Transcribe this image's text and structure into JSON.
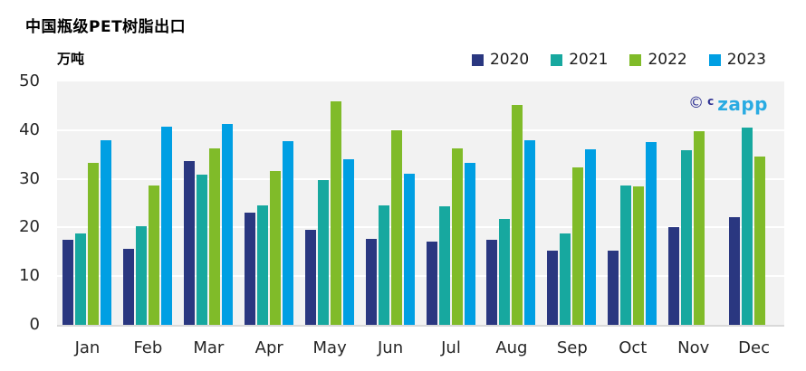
{
  "watermark": {
    "copyright": "©",
    "small_c": "c",
    "brand": "zapp",
    "navy_color": "#2e3192",
    "cyan_color": "#29abe2"
  },
  "chart_data": {
    "type": "bar",
    "title": "中国瓶级PET树脂出口",
    "ylabel": "万吨",
    "xlabel": "",
    "ylim": [
      0,
      50
    ],
    "yticks": [
      0,
      10,
      20,
      30,
      40,
      50
    ],
    "grid": true,
    "legend_position": "top-right",
    "plot_bg_color": "#f2f2f2",
    "gridline_color": "#ffffff",
    "axis_line_color": "#d9d9d9",
    "tick_label_color": "#262626",
    "categories": [
      "Jan",
      "Feb",
      "Mar",
      "Apr",
      "May",
      "Jun",
      "Jul",
      "Aug",
      "Sep",
      "Oct",
      "Nov",
      "Dec"
    ],
    "series": [
      {
        "name": "2020",
        "color": "#2a3780",
        "values": [
          17.5,
          15.6,
          33.7,
          23.1,
          19.6,
          17.6,
          17.1,
          17.4,
          15.2,
          15.2,
          20.1,
          22.1
        ]
      },
      {
        "name": "2021",
        "color": "#17a89f",
        "values": [
          18.8,
          20.2,
          30.8,
          24.6,
          29.8,
          24.5,
          24.4,
          21.8,
          18.7,
          28.6,
          35.8,
          40.6
        ]
      },
      {
        "name": "2022",
        "color": "#80bb29",
        "values": [
          33.2,
          28.7,
          36.2,
          31.6,
          45.9,
          40.0,
          36.3,
          45.1,
          32.4,
          28.4,
          39.7,
          34.5
        ]
      },
      {
        "name": "2023",
        "color": "#009fe3",
        "values": [
          38.0,
          40.8,
          41.2,
          37.7,
          34.0,
          31.0,
          33.2,
          38.0,
          36.0,
          37.6,
          null,
          null
        ]
      }
    ]
  }
}
